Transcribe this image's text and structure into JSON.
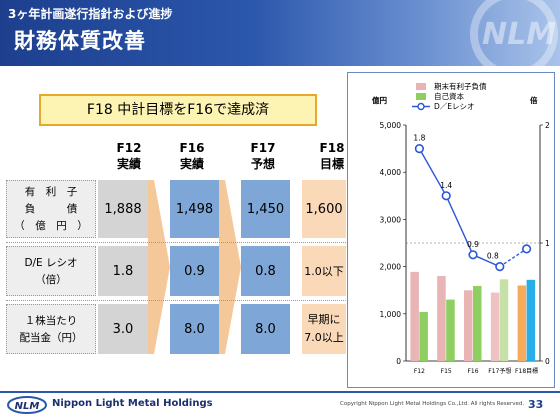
{
  "header": {
    "subtitle": "3ヶ年計画遂行指針および進捗",
    "title": "財務体質改善",
    "logo_text": "NLM"
  },
  "banner": {
    "text": "F18 中計目標をF16で達成済"
  },
  "table": {
    "columns": [
      {
        "year": "F12",
        "kind": "実績"
      },
      {
        "year": "F16",
        "kind": "実績"
      },
      {
        "year": "F17",
        "kind": "予想"
      },
      {
        "year": "F18",
        "kind": "目標"
      }
    ],
    "rows": [
      {
        "label_lines": [
          "有　利　子",
          "負　　　債",
          "（　億　円　）"
        ],
        "values": [
          "1,888",
          "1,498",
          "1,450",
          "1,600"
        ]
      },
      {
        "label_lines": [
          "D/E レシオ",
          "（倍）"
        ],
        "values": [
          "1.8",
          "0.9",
          "0.8",
          "1.0以下"
        ]
      },
      {
        "label_lines": [
          "１株当たり",
          "配当金（円）"
        ],
        "values": [
          "3.0",
          "8.0",
          "8.0",
          "早期に7.0以上"
        ]
      }
    ]
  },
  "chart_data": {
    "type": "bar",
    "categories": [
      "F12",
      "F15",
      "F16",
      "F17予想",
      "F18目標"
    ],
    "series": [
      {
        "name": "期末有利子負債",
        "type": "bar",
        "axis": "left",
        "color": "#e8b4b4",
        "values": [
          1888,
          1800,
          1498,
          1450,
          1600
        ]
      },
      {
        "name": "自己資本",
        "type": "bar",
        "axis": "left",
        "color": "#8fcf62",
        "values": [
          1040,
          1300,
          1590,
          1730,
          1720
        ]
      },
      {
        "name": "D／Eレシオ",
        "type": "line",
        "axis": "right",
        "color": "#2b57d9",
        "values": [
          1.8,
          1.4,
          0.9,
          0.8,
          0.95
        ],
        "labels": [
          "1.8",
          "1.4",
          "0.9",
          "0.8",
          ""
        ]
      }
    ],
    "highlight_bar_colors": {
      "F17予想": [
        "#eec2c2",
        "#c6e0a8"
      ],
      "F18目標": [
        "#f5ab5a",
        "#27aee8"
      ]
    },
    "ylabel_left": "億円",
    "ylabel_right": "倍",
    "ylim_left": [
      0,
      5000
    ],
    "yticks_left": [
      "0",
      "1,000",
      "2,000",
      "3,000",
      "4,000",
      "5,000"
    ],
    "ylim_right": [
      0,
      2
    ],
    "yticks_right": [
      "0",
      "1",
      "2"
    ],
    "reference_line": 1,
    "legend_position": "top"
  },
  "footer": {
    "company": "Nippon Light Metal Holdings",
    "copyright": "Copyright Nippon Light Metal Holdings Co.,Ltd. All rights Reserved.",
    "page": "33"
  },
  "colors": {
    "header_dark": "#1d3f8e",
    "banner_border": "#e8a92a",
    "banner_fill": "#fdf3b2",
    "cell_blue": "#7ea7d8",
    "cell_peach": "#fad9b9",
    "cell_gray": "#d4d4d4"
  }
}
